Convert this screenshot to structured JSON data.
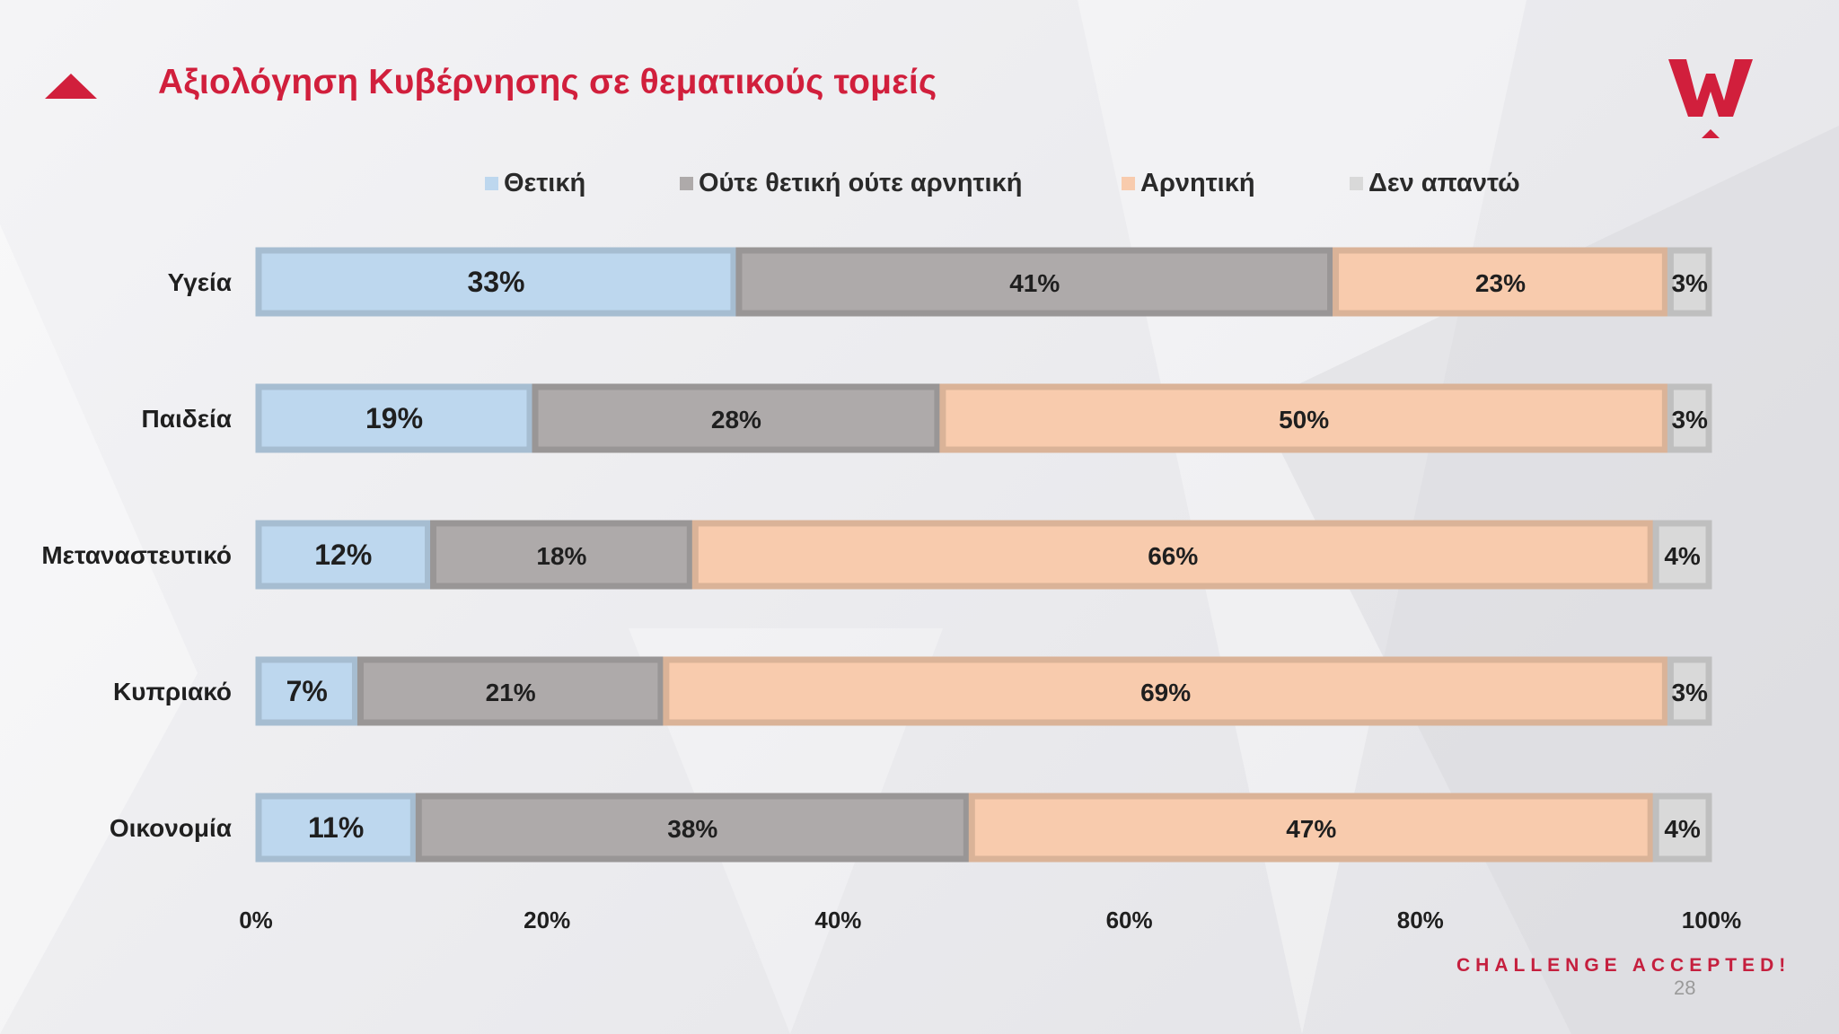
{
  "slide": {
    "title": "Αξιολόγηση Κυβέρνησης σε θεματικούς τομείς",
    "tagline": "CHALLENGE ACCEPTED!",
    "page_number": "28",
    "accent_color": "#d11f3c",
    "icons": [
      "triangle-marker-icon",
      "logo-icon"
    ]
  },
  "chart_data": {
    "type": "bar",
    "orientation": "horizontal",
    "stacked": true,
    "percent_stacked": true,
    "title": "",
    "categories": [
      "Υγεία",
      "Παιδεία",
      "Μεταναστευτικό",
      "Κυπριακό",
      "Οικονομία"
    ],
    "series": [
      {
        "name": "Θετική",
        "color": "#bdd7ee",
        "values": [
          33,
          19,
          12,
          7,
          11
        ]
      },
      {
        "name": "Ούτε θετική ούτε αρνητική",
        "color": "#aeaaaa",
        "values": [
          41,
          28,
          18,
          21,
          38
        ]
      },
      {
        "name": "Αρνητική",
        "color": "#f8cbad",
        "values": [
          23,
          50,
          66,
          69,
          47
        ]
      },
      {
        "name": "Δεν απαντώ",
        "color": "#d9d9d9",
        "values": [
          3,
          3,
          4,
          3,
          4
        ]
      }
    ],
    "data_labels": [
      [
        "33%",
        "41%",
        "23%",
        "3%"
      ],
      [
        "19%",
        "28%",
        "50%",
        "3%"
      ],
      [
        "12%",
        "18%",
        "66%",
        "4%"
      ],
      [
        "7%",
        "21%",
        "69%",
        "3%"
      ],
      [
        "11%",
        "38%",
        "47%",
        "4%"
      ]
    ],
    "xlim": [
      0,
      100
    ],
    "x_ticks": [
      "0%",
      "20%",
      "40%",
      "60%",
      "80%",
      "100%"
    ],
    "legend_position": "top",
    "grid": false
  }
}
